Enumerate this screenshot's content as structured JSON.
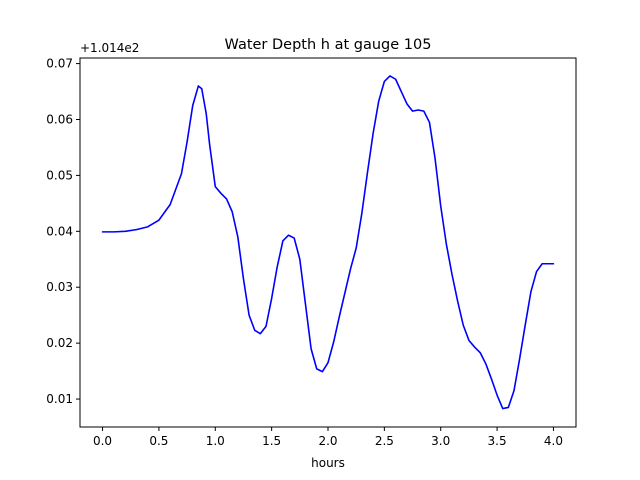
{
  "chart_data": {
    "type": "line",
    "title": "Water Depth h at gauge 105",
    "xlabel": "hours",
    "ylabel": "",
    "offset_label": "+1.014e2",
    "xlim": [
      -0.2,
      4.2
    ],
    "ylim": [
      0.005,
      0.071
    ],
    "x_ticks": [
      0.0,
      0.5,
      1.0,
      1.5,
      2.0,
      2.5,
      3.0,
      3.5,
      4.0
    ],
    "x_tick_labels": [
      "0.0",
      "0.5",
      "1.0",
      "1.5",
      "2.0",
      "2.5",
      "3.0",
      "3.5",
      "4.0"
    ],
    "y_ticks": [
      0.01,
      0.02,
      0.03,
      0.04,
      0.05,
      0.06,
      0.07
    ],
    "y_tick_labels": [
      "0.01",
      "0.02",
      "0.03",
      "0.04",
      "0.05",
      "0.06",
      "0.07"
    ],
    "grid": false,
    "legend": "none",
    "line_color": "#0000ff",
    "series": [
      {
        "x": [
          0.0,
          0.1,
          0.2,
          0.3,
          0.4,
          0.5,
          0.6,
          0.7,
          0.75,
          0.8,
          0.85,
          0.88,
          0.92,
          0.95,
          1.0,
          1.05,
          1.1,
          1.15,
          1.2,
          1.25,
          1.3,
          1.35,
          1.4,
          1.45,
          1.5,
          1.55,
          1.6,
          1.65,
          1.7,
          1.75,
          1.8,
          1.85,
          1.9,
          1.95,
          2.0,
          2.05,
          2.1,
          2.15,
          2.2,
          2.25,
          2.3,
          2.35,
          2.4,
          2.45,
          2.5,
          2.55,
          2.6,
          2.65,
          2.7,
          2.75,
          2.8,
          2.85,
          2.9,
          2.95,
          3.0,
          3.05,
          3.1,
          3.15,
          3.2,
          3.25,
          3.3,
          3.35,
          3.4,
          3.45,
          3.5,
          3.55,
          3.6,
          3.65,
          3.7,
          3.75,
          3.8,
          3.85,
          3.9,
          3.95,
          4.0
        ],
        "y": [
          0.0399,
          0.0399,
          0.04,
          0.0403,
          0.0408,
          0.042,
          0.0448,
          0.0503,
          0.056,
          0.0625,
          0.066,
          0.0655,
          0.061,
          0.0555,
          0.048,
          0.0468,
          0.0458,
          0.0435,
          0.039,
          0.0315,
          0.025,
          0.0223,
          0.0217,
          0.023,
          0.028,
          0.0337,
          0.0383,
          0.0393,
          0.0388,
          0.035,
          0.027,
          0.019,
          0.0154,
          0.0149,
          0.0165,
          0.0202,
          0.0247,
          0.029,
          0.0333,
          0.037,
          0.0432,
          0.0505,
          0.0575,
          0.0633,
          0.0668,
          0.0678,
          0.0672,
          0.065,
          0.0628,
          0.0615,
          0.0617,
          0.0615,
          0.0595,
          0.053,
          0.0445,
          0.0377,
          0.0323,
          0.0275,
          0.0232,
          0.0205,
          0.0193,
          0.0183,
          0.0163,
          0.0136,
          0.0107,
          0.0083,
          0.0085,
          0.0115,
          0.0172,
          0.0233,
          0.0292,
          0.0328,
          0.0342,
          0.0342,
          0.0342
        ]
      }
    ]
  }
}
